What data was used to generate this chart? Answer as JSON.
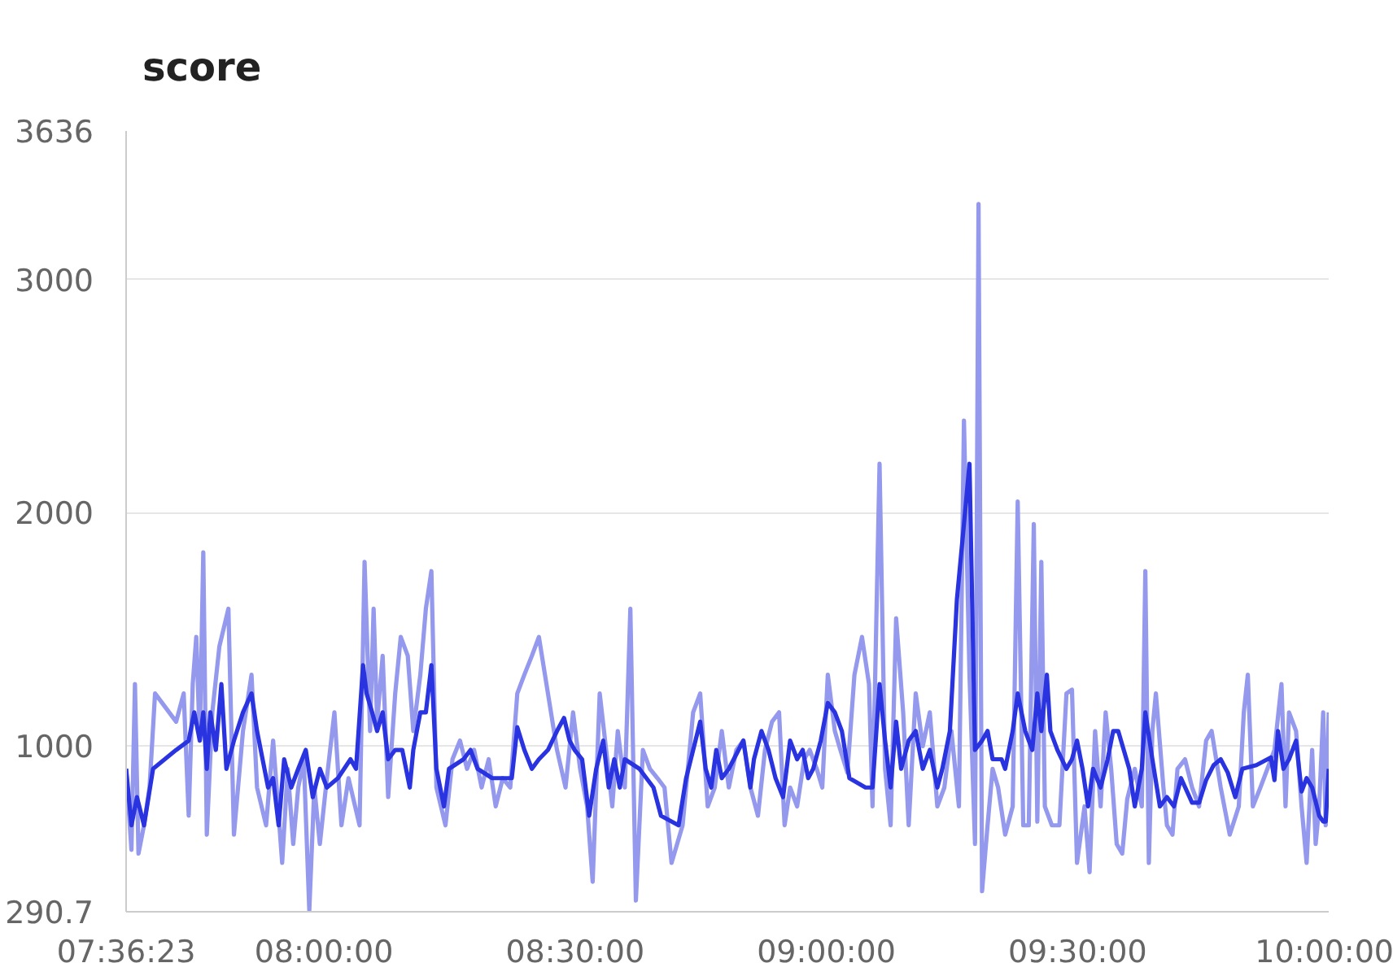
{
  "chart_data": {
    "type": "line",
    "title": "score",
    "xlim": [
      7.6064,
      10.0
    ],
    "ylim": [
      290.7,
      3636
    ],
    "xticks": [
      {
        "value": 7.6064,
        "label": "07:36:23"
      },
      {
        "value": 8.0,
        "label": "08:00:00"
      },
      {
        "value": 8.5,
        "label": "08:30:00"
      },
      {
        "value": 9.0,
        "label": "09:00:00"
      },
      {
        "value": 9.5,
        "label": "09:30:00"
      },
      {
        "value": 10.0,
        "label": "10:00:00"
      }
    ],
    "yticks": [
      290.7,
      1000,
      2000,
      3000,
      3636
    ],
    "grid": "y",
    "line_style": "solid",
    "marker": "none",
    "series": [
      {
        "color": "#9499ee",
        "x": [
          7.6064,
          7.617,
          7.624,
          7.631,
          7.642,
          7.653,
          7.664,
          7.706,
          7.721,
          7.731,
          7.739,
          7.746,
          7.753,
          7.76,
          7.767,
          7.778,
          7.792,
          7.81,
          7.821,
          7.839,
          7.856,
          7.867,
          7.885,
          7.899,
          7.917,
          7.928,
          7.939,
          7.949,
          7.96,
          7.971,
          7.981,
          7.992,
          8.006,
          8.021,
          8.035,
          8.049,
          8.071,
          8.081,
          8.092,
          8.099,
          8.106,
          8.117,
          8.128,
          8.142,
          8.153,
          8.167,
          8.178,
          8.192,
          8.203,
          8.214,
          8.224,
          8.242,
          8.256,
          8.271,
          8.285,
          8.299,
          8.314,
          8.328,
          8.342,
          8.356,
          8.371,
          8.385,
          8.399,
          8.414,
          8.428,
          8.446,
          8.464,
          8.481,
          8.496,
          8.51,
          8.524,
          8.535,
          8.549,
          8.564,
          8.574,
          8.585,
          8.599,
          8.61,
          8.621,
          8.635,
          8.649,
          8.664,
          8.678,
          8.692,
          8.714,
          8.735,
          8.749,
          8.764,
          8.778,
          8.792,
          8.806,
          8.821,
          8.835,
          8.849,
          8.864,
          8.878,
          8.892,
          8.906,
          8.917,
          8.928,
          8.942,
          8.956,
          8.967,
          8.981,
          8.992,
          9.003,
          9.017,
          9.028,
          9.042,
          9.056,
          9.071,
          9.085,
          9.092,
          9.106,
          9.117,
          9.128,
          9.139,
          9.153,
          9.164,
          9.178,
          9.192,
          9.206,
          9.221,
          9.235,
          9.249,
          9.264,
          9.274,
          9.285,
          9.296,
          9.303,
          9.31,
          9.321,
          9.331,
          9.342,
          9.356,
          9.371,
          9.381,
          9.392,
          9.403,
          9.413,
          9.42,
          9.428,
          9.435,
          9.449,
          9.464,
          9.478,
          9.489,
          9.499,
          9.514,
          9.524,
          9.535,
          9.546,
          9.556,
          9.567,
          9.578,
          9.589,
          9.599,
          9.614,
          9.628,
          9.635,
          9.642,
          9.649,
          9.656,
          9.671,
          9.678,
          9.689,
          9.699,
          9.714,
          9.728,
          9.742,
          9.756,
          9.767,
          9.785,
          9.803,
          9.821,
          9.831,
          9.839,
          9.849,
          9.864,
          9.878,
          9.892,
          9.906,
          9.914,
          9.921,
          9.935,
          9.946,
          9.956,
          9.967,
          9.974,
          9.981,
          9.989,
          9.994,
          10.0
        ],
        "values": [
          903,
          556,
          1266,
          540,
          661,
          823,
          1226,
          1105,
          1226,
          702,
          1266,
          1468,
          1024,
          1831,
          621,
          1145,
          1427,
          1589,
          621,
          1065,
          1306,
          823,
          661,
          1024,
          500,
          903,
          581,
          823,
          944,
          298,
          823,
          581,
          863,
          1145,
          661,
          863,
          661,
          1790,
          1065,
          1589,
          1105,
          1387,
          782,
          1226,
          1468,
          1387,
          1065,
          1306,
          1589,
          1750,
          823,
          661,
          944,
          1024,
          903,
          984,
          823,
          944,
          742,
          863,
          823,
          1226,
          1306,
          1387,
          1468,
          1226,
          984,
          823,
          1145,
          903,
          742,
          419,
          1226,
          944,
          742,
          1065,
          823,
          1589,
          339,
          984,
          903,
          863,
          823,
          500,
          661,
          1145,
          1226,
          742,
          823,
          1065,
          823,
          984,
          1024,
          823,
          702,
          984,
          1105,
          1145,
          661,
          823,
          742,
          944,
          984,
          903,
          823,
          1306,
          1065,
          984,
          887,
          1306,
          1468,
          1266,
          742,
          2210,
          903,
          661,
          1548,
          1145,
          661,
          1226,
          1000,
          1145,
          742,
          823,
          1065,
          742,
          2395,
          1306,
          581,
          3323,
          379,
          661,
          903,
          823,
          621,
          742,
          2048,
          661,
          661,
          1952,
          677,
          1790,
          742,
          661,
          661,
          1226,
          1242,
          500,
          742,
          460,
          1065,
          742,
          1145,
          903,
          581,
          540,
          774,
          903,
          742,
          1750,
          500,
          1065,
          1226,
          823,
          661,
          621,
          903,
          944,
          823,
          742,
          1024,
          1065,
          823,
          621,
          742,
          1145,
          1306,
          742,
          823,
          903,
          984,
          1266,
          742,
          1145,
          1065,
          742,
          500,
          984,
          581,
          742,
          1145,
          661,
          1145
        ]
      },
      {
        "color": "#2a33e0",
        "x": [
          7.6064,
          7.617,
          7.628,
          7.642,
          7.66,
          7.706,
          7.731,
          7.742,
          7.753,
          7.76,
          7.767,
          7.774,
          7.785,
          7.796,
          7.806,
          7.821,
          7.839,
          7.856,
          7.867,
          7.878,
          7.889,
          7.899,
          7.91,
          7.921,
          7.935,
          7.949,
          7.964,
          7.978,
          7.992,
          8.006,
          8.028,
          8.053,
          8.064,
          8.078,
          8.085,
          8.096,
          8.106,
          8.117,
          8.128,
          8.142,
          8.156,
          8.171,
          8.178,
          8.192,
          8.203,
          8.214,
          8.224,
          8.239,
          8.249,
          8.278,
          8.292,
          8.306,
          8.335,
          8.36,
          8.374,
          8.385,
          8.399,
          8.414,
          8.428,
          8.446,
          8.464,
          8.478,
          8.489,
          8.499,
          8.514,
          8.528,
          8.542,
          8.556,
          8.567,
          8.578,
          8.589,
          8.599,
          8.628,
          8.656,
          8.671,
          8.706,
          8.721,
          8.735,
          8.749,
          8.76,
          8.771,
          8.781,
          8.792,
          8.806,
          8.835,
          8.849,
          8.856,
          8.871,
          8.885,
          8.899,
          8.914,
          8.928,
          8.942,
          8.953,
          8.964,
          8.974,
          8.989,
          9.003,
          9.017,
          9.031,
          9.046,
          9.078,
          9.092,
          9.106,
          9.117,
          9.128,
          9.139,
          9.149,
          9.164,
          9.178,
          9.192,
          9.206,
          9.221,
          9.231,
          9.246,
          9.26,
          9.274,
          9.285,
          9.296,
          9.31,
          9.321,
          9.331,
          9.349,
          9.356,
          9.371,
          9.381,
          9.396,
          9.41,
          9.42,
          9.428,
          9.439,
          9.446,
          9.46,
          9.478,
          9.489,
          9.499,
          9.51,
          9.521,
          9.531,
          9.546,
          9.56,
          9.571,
          9.581,
          9.592,
          9.603,
          9.614,
          9.628,
          9.635,
          9.649,
          9.664,
          9.678,
          9.692,
          9.706,
          9.728,
          9.742,
          9.756,
          9.771,
          9.785,
          9.799,
          9.814,
          9.828,
          9.856,
          9.885,
          9.892,
          9.899,
          9.91,
          9.921,
          9.935,
          9.946,
          9.956,
          9.967,
          9.981,
          9.989,
          9.994,
          10.0
        ],
        "values": [
          903,
          661,
          782,
          661,
          903,
          984,
          1024,
          1145,
          1024,
          1145,
          903,
          1145,
          984,
          1266,
          903,
          1024,
          1145,
          1226,
          1065,
          944,
          823,
          863,
          661,
          944,
          823,
          903,
          984,
          782,
          903,
          823,
          863,
          944,
          903,
          1347,
          1226,
          1145,
          1065,
          1145,
          944,
          984,
          984,
          823,
          984,
          1145,
          1145,
          1347,
          903,
          742,
          903,
          944,
          984,
          903,
          863,
          863,
          863,
          1081,
          984,
          903,
          944,
          984,
          1065,
          1121,
          1024,
          984,
          944,
          702,
          903,
          1024,
          823,
          944,
          823,
          944,
          903,
          823,
          702,
          661,
          863,
          984,
          1105,
          903,
          823,
          984,
          863,
          903,
          1024,
          823,
          944,
          1065,
          984,
          863,
          782,
          1024,
          944,
          984,
          863,
          903,
          1024,
          1185,
          1145,
          1065,
          863,
          823,
          823,
          1266,
          1024,
          823,
          1105,
          903,
          1024,
          1065,
          903,
          984,
          823,
          903,
          1065,
          1629,
          1952,
          2210,
          984,
          1024,
          1065,
          944,
          944,
          903,
          1065,
          1226,
          1065,
          984,
          1226,
          1065,
          1306,
          1065,
          984,
          903,
          944,
          1024,
          903,
          742,
          903,
          823,
          944,
          1065,
          1065,
          984,
          903,
          742,
          903,
          1145,
          944,
          742,
          782,
          742,
          863,
          758,
          758,
          855,
          919,
          944,
          887,
          782,
          903,
          919,
          952,
          855,
          1065,
          903,
          944,
          1024,
          806,
          863,
          823,
          702,
          677,
          677,
          903
        ]
      }
    ]
  }
}
